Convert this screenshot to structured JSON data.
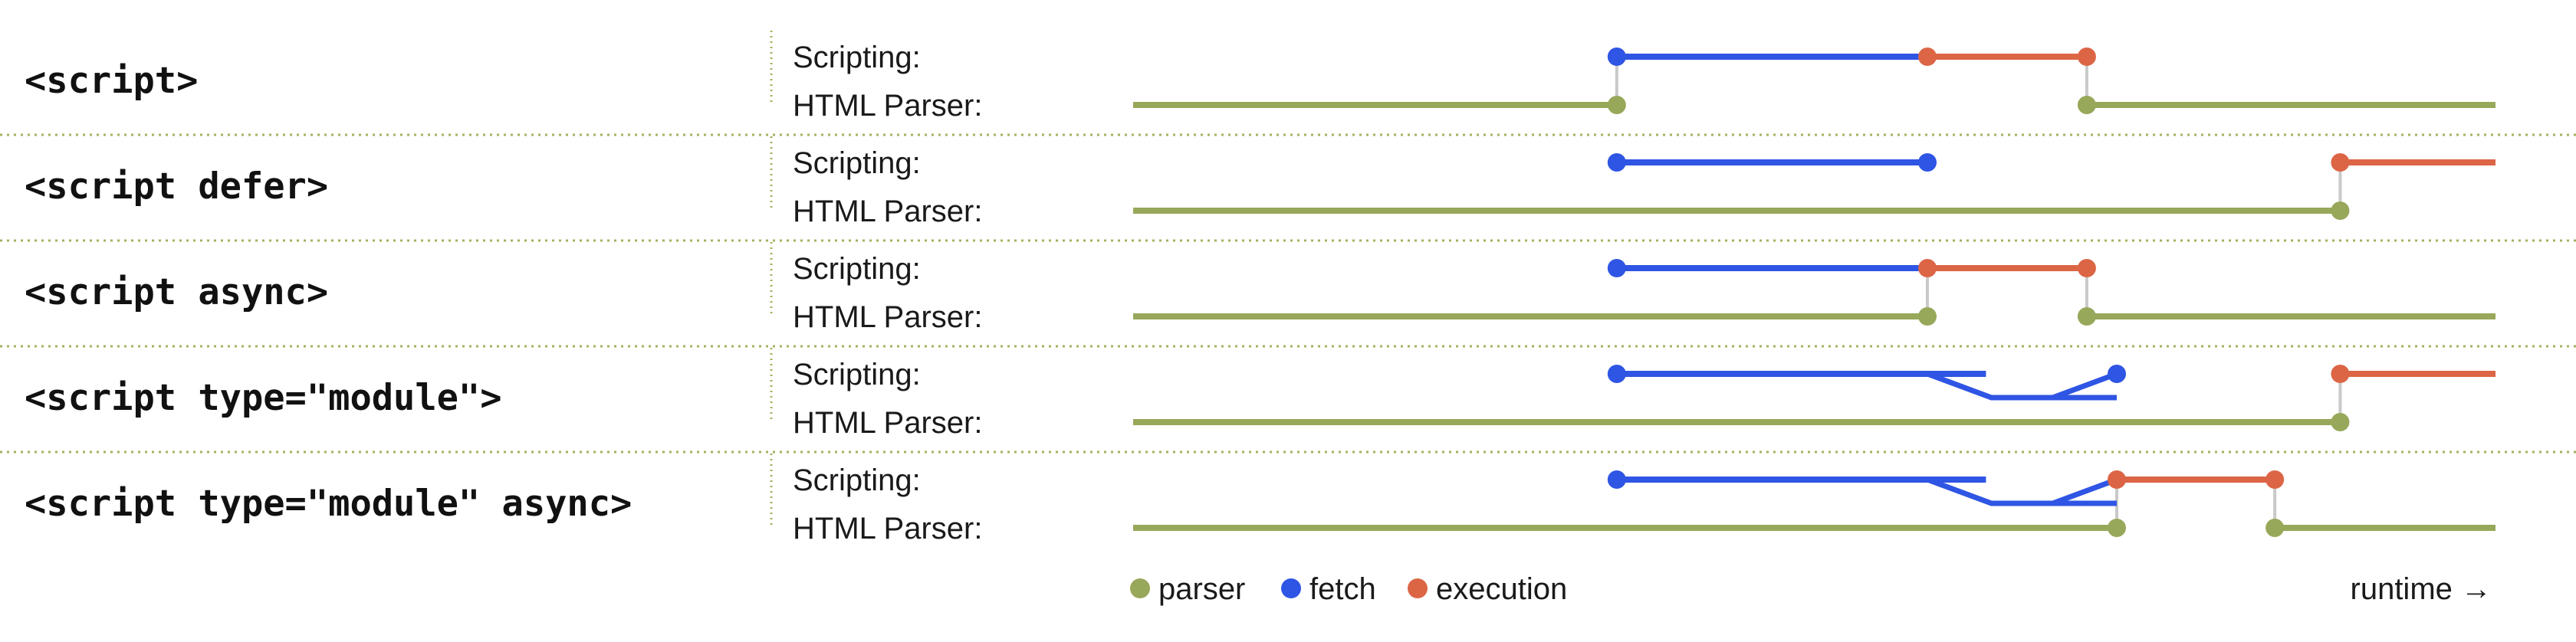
{
  "colors": {
    "parser": "#97a85a",
    "fetch": "#2f55e4",
    "execution": "#dc6546",
    "connector": "#c9c9c9",
    "divider": "#a8b060"
  },
  "lanes": {
    "scripting": "Scripting:",
    "html_parser": "HTML Parser:"
  },
  "rows": [
    {
      "label": "<script>",
      "parser": [
        [
          0,
          0.355
        ],
        [
          0.7,
          1.0
        ]
      ],
      "fetch": [
        [
          0.355,
          0.583
        ]
      ],
      "execution": [
        [
          0.583,
          0.7
        ]
      ],
      "dots": [
        {
          "lane": "s",
          "t": 0.355,
          "kind": "fetch"
        },
        {
          "lane": "s",
          "t": 0.583,
          "kind": "execution"
        },
        {
          "lane": "s",
          "t": 0.7,
          "kind": "execution"
        },
        {
          "lane": "p",
          "t": 0.355,
          "kind": "parser"
        },
        {
          "lane": "p",
          "t": 0.7,
          "kind": "parser"
        }
      ],
      "connectors": [
        0.355,
        0.7
      ]
    },
    {
      "label": "<script defer>",
      "parser": [
        [
          0,
          0.886
        ]
      ],
      "fetch": [
        [
          0.355,
          0.583
        ]
      ],
      "execution": [
        [
          0.886,
          1.0
        ]
      ],
      "dots": [
        {
          "lane": "s",
          "t": 0.355,
          "kind": "fetch"
        },
        {
          "lane": "s",
          "t": 0.583,
          "kind": "fetch"
        },
        {
          "lane": "s",
          "t": 0.886,
          "kind": "execution"
        },
        {
          "lane": "p",
          "t": 0.886,
          "kind": "parser"
        }
      ],
      "connectors": [
        0.886
      ]
    },
    {
      "label": "<script async>",
      "parser": [
        [
          0,
          0.583
        ],
        [
          0.7,
          1.0
        ]
      ],
      "fetch": [
        [
          0.355,
          0.583
        ]
      ],
      "execution": [
        [
          0.583,
          0.7
        ]
      ],
      "dots": [
        {
          "lane": "s",
          "t": 0.355,
          "kind": "fetch"
        },
        {
          "lane": "s",
          "t": 0.583,
          "kind": "execution"
        },
        {
          "lane": "s",
          "t": 0.7,
          "kind": "execution"
        },
        {
          "lane": "p",
          "t": 0.583,
          "kind": "parser"
        },
        {
          "lane": "p",
          "t": 0.7,
          "kind": "parser"
        }
      ],
      "connectors": [
        0.583,
        0.7
      ]
    },
    {
      "label": "<script type=\"module\">",
      "parser": [
        [
          0,
          0.886
        ]
      ],
      "fetch": [
        [
          0.355,
          0.626
        ]
      ],
      "execution": [
        [
          0.886,
          1.0
        ]
      ],
      "branch": {
        "start": 0.583,
        "mid": 0.63,
        "merge": 0.675,
        "end": 0.722,
        "branch_end": 0.722
      },
      "dots": [
        {
          "lane": "s",
          "t": 0.355,
          "kind": "fetch"
        },
        {
          "lane": "s",
          "t": 0.722,
          "kind": "fetch"
        },
        {
          "lane": "s",
          "t": 0.886,
          "kind": "execution"
        },
        {
          "lane": "p",
          "t": 0.886,
          "kind": "parser"
        }
      ],
      "connectors": [
        0.886
      ]
    },
    {
      "label": "<script type=\"module\" async>",
      "parser": [
        [
          0,
          0.722
        ],
        [
          0.838,
          1.0
        ]
      ],
      "fetch": [
        [
          0.355,
          0.626
        ]
      ],
      "execution": [
        [
          0.722,
          0.838
        ]
      ],
      "branch": {
        "start": 0.583,
        "mid": 0.63,
        "merge": 0.675,
        "end": 0.722,
        "branch_end": 0.722
      },
      "dots": [
        {
          "lane": "s",
          "t": 0.355,
          "kind": "fetch"
        },
        {
          "lane": "s",
          "t": 0.722,
          "kind": "execution"
        },
        {
          "lane": "s",
          "t": 0.838,
          "kind": "execution"
        },
        {
          "lane": "p",
          "t": 0.722,
          "kind": "parser"
        },
        {
          "lane": "p",
          "t": 0.838,
          "kind": "parser"
        }
      ],
      "connectors": [
        0.722,
        0.838
      ]
    }
  ],
  "legend": {
    "parser": "parser",
    "fetch": "fetch",
    "execution": "execution",
    "runtime": "runtime →"
  }
}
